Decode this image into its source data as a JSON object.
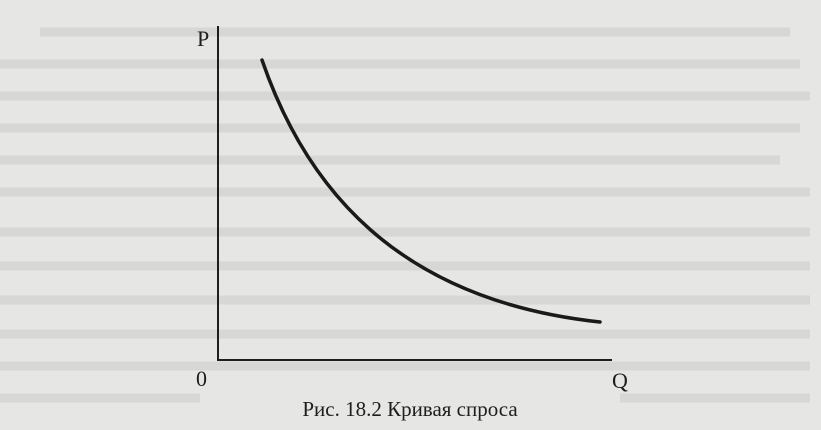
{
  "axes": {
    "y_label": "P",
    "x_label": "Q",
    "origin": "0"
  },
  "caption": "Рис. 18.2 Кривая спроса"
}
